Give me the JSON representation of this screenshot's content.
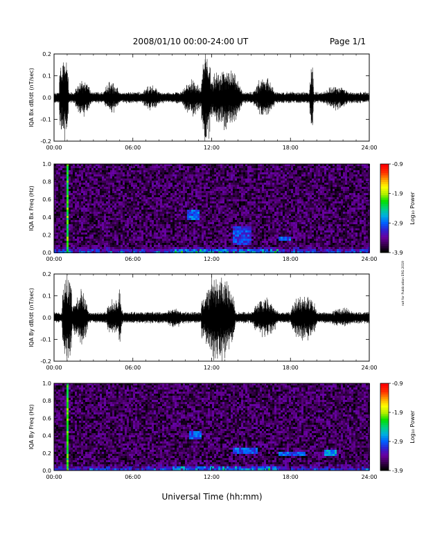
{
  "header": {
    "title": "2008/01/10  00:00-24:00 UT",
    "page": "Page 1/1"
  },
  "footer": {
    "xlabel": "Universal Time (hh:mm)"
  },
  "side_note": "not for Publication ERG 2019",
  "colorbar": {
    "label": "Log₁₀ Power",
    "ticks": [
      "-0.9",
      "-1.9",
      "-2.9",
      "-3.9"
    ],
    "range": [
      -3.9,
      -0.9
    ],
    "colors": [
      "#000000",
      "#3a0050",
      "#6a00a0",
      "#3020d0",
      "#0060ff",
      "#00b0e0",
      "#00d080",
      "#00e000",
      "#b0f000",
      "#ffff00",
      "#ffa000",
      "#ff3000",
      "#ff0000"
    ]
  },
  "chart_data": [
    {
      "type": "line",
      "ylabel": "IQA Bx dB/dt (nT/sec)",
      "xlim": [
        0,
        24
      ],
      "ylim": [
        -0.2,
        0.2
      ],
      "xticks": [
        "00:00",
        "06:00",
        "12:00",
        "18:00",
        "24:00"
      ],
      "yticks": [
        "-0.2",
        "-0.1",
        "0.0",
        "0.1",
        "0.2"
      ],
      "bursts": [
        {
          "t": 0.75,
          "dur": 0.7,
          "amp": 0.25
        },
        {
          "t": 2.2,
          "dur": 1.2,
          "amp": 0.09
        },
        {
          "t": 4.4,
          "dur": 1.2,
          "amp": 0.08
        },
        {
          "t": 7.4,
          "dur": 1.4,
          "amp": 0.06
        },
        {
          "t": 10.5,
          "dur": 1.5,
          "amp": 0.09
        },
        {
          "t": 11.6,
          "dur": 0.8,
          "amp": 0.25
        },
        {
          "t": 13.0,
          "dur": 2.6,
          "amp": 0.16
        },
        {
          "t": 16.0,
          "dur": 1.6,
          "amp": 0.1
        },
        {
          "t": 19.6,
          "dur": 0.3,
          "amp": 0.18
        },
        {
          "t": 21.5,
          "dur": 2.0,
          "amp": 0.06
        }
      ]
    },
    {
      "type": "heatmap",
      "ylabel": "IQA Bx Freq (Hz)",
      "xlim": [
        0,
        24
      ],
      "ylim": [
        0.0,
        1.0
      ],
      "xticks": [
        "00:00",
        "06:00",
        "12:00",
        "18:00",
        "24:00"
      ],
      "yticks": [
        "0.0",
        "0.2",
        "0.4",
        "0.6",
        "0.8",
        "1.0"
      ],
      "features": [
        {
          "t0": 0.9,
          "t1": 1.1,
          "f0": 0.0,
          "f1": 1.0,
          "level": -1.9
        },
        {
          "t0": 10.0,
          "t1": 10.1,
          "f0": 0.0,
          "f1": 0.8,
          "level": -2.6
        },
        {
          "t0": 10.0,
          "t1": 11.0,
          "f0": 0.38,
          "f1": 0.5,
          "level": -2.7
        },
        {
          "t0": 13.5,
          "t1": 15.0,
          "f0": 0.1,
          "f1": 0.3,
          "level": -2.8
        },
        {
          "t0": 17.0,
          "t1": 18.0,
          "f0": 0.15,
          "f1": 0.2,
          "level": -2.7
        }
      ]
    },
    {
      "type": "line",
      "ylabel": "IQA By dB/dt (nT/sec)",
      "xlim": [
        0,
        24
      ],
      "ylim": [
        -0.2,
        0.2
      ],
      "xticks": [
        "00:00",
        "06:00",
        "12:00",
        "18:00",
        "24:00"
      ],
      "yticks": [
        "-0.2",
        "-0.1",
        "0.0",
        "0.1",
        "0.2"
      ],
      "bursts": [
        {
          "t": 1.0,
          "dur": 0.8,
          "amp": 0.25
        },
        {
          "t": 2.0,
          "dur": 1.2,
          "amp": 0.14
        },
        {
          "t": 4.6,
          "dur": 1.2,
          "amp": 0.1
        },
        {
          "t": 5.0,
          "dur": 0.2,
          "amp": 0.18
        },
        {
          "t": 9.2,
          "dur": 1.6,
          "amp": 0.05
        },
        {
          "t": 12.5,
          "dur": 2.6,
          "amp": 0.22
        },
        {
          "t": 16.0,
          "dur": 2.0,
          "amp": 0.1
        },
        {
          "t": 19.0,
          "dur": 2.0,
          "amp": 0.12
        },
        {
          "t": 22.0,
          "dur": 2.0,
          "amp": 0.05
        }
      ]
    },
    {
      "type": "heatmap",
      "ylabel": "IQA By Freq (Hz)",
      "xlim": [
        0,
        24
      ],
      "ylim": [
        0.0,
        1.0
      ],
      "xticks": [
        "00:00",
        "06:00",
        "12:00",
        "18:00",
        "24:00"
      ],
      "yticks": [
        "0.0",
        "0.2",
        "0.4",
        "0.6",
        "0.8",
        "1.0"
      ],
      "features": [
        {
          "t0": 0.9,
          "t1": 1.1,
          "f0": 0.0,
          "f1": 1.0,
          "level": -1.9
        },
        {
          "t0": 10.0,
          "t1": 10.1,
          "f0": 0.0,
          "f1": 0.8,
          "level": -2.6
        },
        {
          "t0": 10.2,
          "t1": 11.2,
          "f0": 0.38,
          "f1": 0.46,
          "level": -2.7
        },
        {
          "t0": 13.5,
          "t1": 15.5,
          "f0": 0.2,
          "f1": 0.28,
          "level": -2.7
        },
        {
          "t0": 17.0,
          "t1": 19.0,
          "f0": 0.18,
          "f1": 0.23,
          "level": -2.7
        },
        {
          "t0": 20.5,
          "t1": 21.5,
          "f0": 0.18,
          "f1": 0.24,
          "level": -2.5
        }
      ]
    }
  ]
}
